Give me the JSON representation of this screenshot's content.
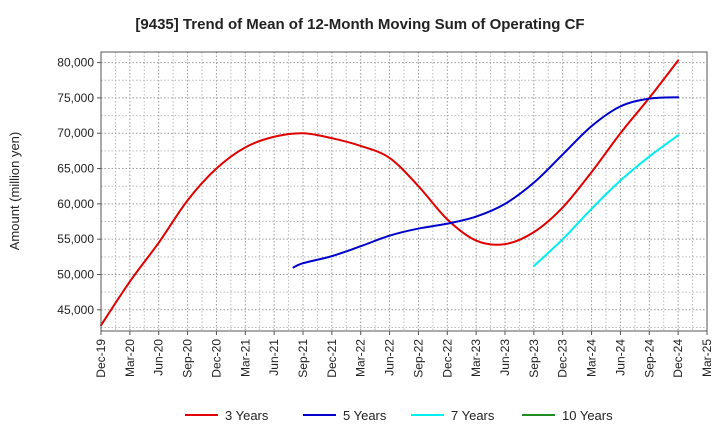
{
  "chart_data": {
    "type": "line",
    "title": "[9435]  Trend of Mean of 12-Month Moving Sum of Operating CF",
    "xlabel": "",
    "ylabel": "Amount (million yen)",
    "ylim": [
      42000,
      81500
    ],
    "yticks": [
      45000,
      50000,
      55000,
      60000,
      65000,
      70000,
      75000,
      80000
    ],
    "ytick_labels": [
      "45,000",
      "50,000",
      "55,000",
      "60,000",
      "65,000",
      "70,000",
      "75,000",
      "80,000"
    ],
    "x_tick_labels": [
      "Dec-19",
      "Mar-20",
      "Jun-20",
      "Sep-20",
      "Dec-20",
      "Mar-21",
      "Jun-21",
      "Sep-21",
      "Dec-21",
      "Mar-22",
      "Jun-22",
      "Sep-22",
      "Dec-22",
      "Mar-23",
      "Jun-23",
      "Sep-23",
      "Dec-23",
      "Mar-24",
      "Jun-24",
      "Sep-24",
      "Dec-24",
      "Mar-25"
    ],
    "grid": true,
    "legend_position": "bottom",
    "series": [
      {
        "name": "3 Years",
        "color": "#e00000",
        "points": [
          [
            0,
            42800
          ],
          [
            1,
            49000
          ],
          [
            2,
            54500
          ],
          [
            3,
            60500
          ],
          [
            4,
            65000
          ],
          [
            5,
            68000
          ],
          [
            6,
            69500
          ],
          [
            7,
            70000
          ],
          [
            8,
            69300
          ],
          [
            9,
            68200
          ],
          [
            10,
            66500
          ],
          [
            11,
            62500
          ],
          [
            12,
            57800
          ],
          [
            13,
            54800
          ],
          [
            14,
            54300
          ],
          [
            15,
            56000
          ],
          [
            16,
            59500
          ],
          [
            17,
            64500
          ],
          [
            18,
            70000
          ],
          [
            19,
            75000
          ],
          [
            20,
            80300
          ]
        ]
      },
      {
        "name": "5 Years",
        "color": "#0000cc",
        "points": [
          [
            6.67,
            51000
          ],
          [
            7,
            51600
          ],
          [
            8,
            52600
          ],
          [
            9,
            54000
          ],
          [
            10,
            55500
          ],
          [
            11,
            56500
          ],
          [
            12,
            57200
          ],
          [
            13,
            58200
          ],
          [
            14,
            60000
          ],
          [
            15,
            63000
          ],
          [
            16,
            67000
          ],
          [
            17,
            71000
          ],
          [
            18,
            73800
          ],
          [
            19,
            74900
          ],
          [
            20,
            75100
          ]
        ]
      },
      {
        "name": "7 Years",
        "color": "#00eeee",
        "points": [
          [
            15,
            51200
          ],
          [
            16,
            55000
          ],
          [
            17,
            59300
          ],
          [
            18,
            63300
          ],
          [
            19,
            66700
          ],
          [
            20,
            69700
          ]
        ]
      },
      {
        "name": "10 Years",
        "color": "#228b22",
        "points": []
      }
    ]
  }
}
